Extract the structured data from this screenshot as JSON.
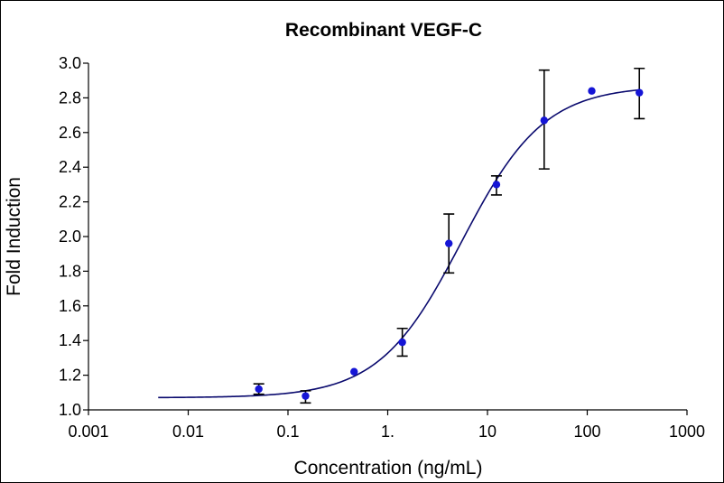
{
  "chart_data": {
    "type": "scatter",
    "title": "Recombinant VEGF-C",
    "xlabel": "Concentration (ng/mL)",
    "ylabel": "Fold Induction",
    "xscale": "log",
    "xlim": [
      0.001,
      1000
    ],
    "ylim": [
      1.0,
      3.0
    ],
    "xticks": [
      0.001,
      0.01,
      0.1,
      1,
      10,
      100,
      1000
    ],
    "xtick_labels": [
      "0.001",
      "0.01",
      "0.1",
      "1.",
      "10",
      "100",
      "1000"
    ],
    "yticks": [
      1.0,
      1.2,
      1.4,
      1.6,
      1.8,
      2.0,
      2.2,
      2.4,
      2.6,
      2.8,
      3.0
    ],
    "ytick_labels": [
      "1.0",
      "1.2",
      "1.4",
      "1.6",
      "1.8",
      "2.0",
      "2.2",
      "2.4",
      "2.6",
      "2.8",
      "3.0"
    ],
    "grid": false,
    "points": [
      {
        "x": 0.051,
        "y": 1.12,
        "err_low": 1.09,
        "err_high": 1.15
      },
      {
        "x": 0.15,
        "y": 1.08,
        "err_low": 1.04,
        "err_high": 1.11
      },
      {
        "x": 0.46,
        "y": 1.22,
        "err_low": 1.22,
        "err_high": 1.22
      },
      {
        "x": 1.4,
        "y": 1.39,
        "err_low": 1.31,
        "err_high": 1.47
      },
      {
        "x": 4.1,
        "y": 1.96,
        "err_low": 1.79,
        "err_high": 2.13
      },
      {
        "x": 12.3,
        "y": 2.3,
        "err_low": 2.24,
        "err_high": 2.35
      },
      {
        "x": 37,
        "y": 2.67,
        "err_low": 2.39,
        "err_high": 2.96
      },
      {
        "x": 111,
        "y": 2.84,
        "err_low": 2.84,
        "err_high": 2.84
      },
      {
        "x": 333,
        "y": 2.83,
        "err_low": 2.68,
        "err_high": 2.97
      }
    ],
    "fit_curve": {
      "model": "4PL",
      "bottom": 1.07,
      "top": 2.87,
      "ec50": 5.5,
      "hill": 1.05,
      "x_range": [
        0.005,
        333
      ]
    },
    "colors": {
      "points": "#1515d6",
      "fit": "#0a0a6e",
      "errorbars": "#000000"
    }
  }
}
